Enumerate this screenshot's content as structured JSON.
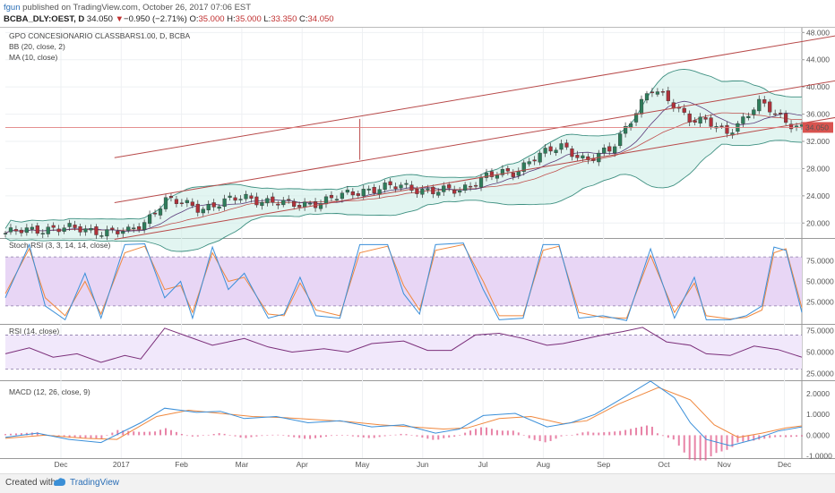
{
  "header": {
    "author": "fgun",
    "published_text": "published on TradingView.com, October 26, 2017 07:06 EST",
    "symbol": "BCBA_DLY:OEST, D",
    "price": "34.050",
    "change_arrow": "▼",
    "change": "−0.950 (−2.71%)",
    "o_label": "O:",
    "o_value": "35.000",
    "h_label": "H:",
    "h_value": "35.000",
    "l_label": "L:",
    "l_value": "33.350",
    "c_label": "C:",
    "c_value": "34.050"
  },
  "footer": {
    "created_with": "Created with",
    "brand": "TradingView"
  },
  "chart_data": {
    "type": "candlestick",
    "panes": {
      "price": {
        "legend": [
          "GPO CONCESIONARIO CLASSBARS1.00, D, BCBA",
          "BB (20, close, 2)",
          "MA (10, close)"
        ],
        "ticks": [
          "48.000",
          "44.000",
          "40.000",
          "36.000",
          "32.000",
          "28.000",
          "24.000",
          "20.000"
        ],
        "tick_values": [
          48,
          44,
          40,
          36,
          32,
          28,
          24,
          20
        ],
        "ylim": [
          17.8,
          48.7
        ],
        "last_price_label": "34.050",
        "last_price": 34.05,
        "close_path": [
          [
            0,
            18.5
          ],
          [
            0.06,
            19.3
          ],
          [
            0.11,
            18.9
          ],
          [
            0.155,
            18.6
          ],
          [
            0.175,
            20.2
          ],
          [
            0.2,
            23.4
          ],
          [
            0.245,
            22.2
          ],
          [
            0.3,
            23.8
          ],
          [
            0.36,
            22.6
          ],
          [
            0.4,
            23.2
          ],
          [
            0.45,
            24.9
          ],
          [
            0.5,
            25.4
          ],
          [
            0.54,
            24.6
          ],
          [
            0.57,
            24.8
          ],
          [
            0.6,
            26.8
          ],
          [
            0.64,
            27.4
          ],
          [
            0.66,
            29.6
          ],
          [
            0.7,
            31.2
          ],
          [
            0.73,
            29.3
          ],
          [
            0.76,
            30.6
          ],
          [
            0.775,
            33.4
          ],
          [
            0.795,
            37.2
          ],
          [
            0.81,
            39.6
          ],
          [
            0.835,
            37.8
          ],
          [
            0.86,
            35.4
          ],
          [
            0.88,
            34.8
          ],
          [
            0.905,
            33.2
          ],
          [
            0.93,
            35.8
          ],
          [
            0.945,
            37.6
          ],
          [
            0.965,
            36.2
          ],
          [
            0.98,
            35.0
          ],
          [
            1.0,
            34.05
          ]
        ],
        "trend_lines": [
          {
            "x1": 0.137,
            "y1": 29.6,
            "x2": 1.047,
            "y2": 47.6
          },
          {
            "x1": 0.137,
            "y1": 23.0,
            "x2": 1.047,
            "y2": 41.0
          },
          {
            "x1": 0.137,
            "y1": 17.6,
            "x2": 1.047,
            "y2": 35.6
          },
          {
            "x1": 0.445,
            "y1": 29.3,
            "x2": 0.445,
            "y2": 35.3
          }
        ]
      },
      "stoch_rsi": {
        "legend": "Stoch RSI (3, 3, 14, 14, close)",
        "ticks": [
          "75.0000",
          "50.0000",
          "25.0000"
        ],
        "tick_values": [
          75,
          50,
          25
        ],
        "ylim": [
          -2,
          102
        ],
        "bands": [
          80,
          20
        ],
        "k_path": [
          [
            0,
            30
          ],
          [
            0.03,
            95
          ],
          [
            0.05,
            20
          ],
          [
            0.075,
            3
          ],
          [
            0.1,
            60
          ],
          [
            0.12,
            5
          ],
          [
            0.15,
            95
          ],
          [
            0.175,
            96
          ],
          [
            0.2,
            30
          ],
          [
            0.22,
            50
          ],
          [
            0.235,
            5
          ],
          [
            0.26,
            92
          ],
          [
            0.28,
            40
          ],
          [
            0.3,
            60
          ],
          [
            0.33,
            5
          ],
          [
            0.35,
            10
          ],
          [
            0.37,
            55
          ],
          [
            0.39,
            8
          ],
          [
            0.42,
            5
          ],
          [
            0.445,
            95
          ],
          [
            0.48,
            95
          ],
          [
            0.5,
            35
          ],
          [
            0.52,
            10
          ],
          [
            0.54,
            95
          ],
          [
            0.575,
            97
          ],
          [
            0.6,
            40
          ],
          [
            0.62,
            3
          ],
          [
            0.65,
            5
          ],
          [
            0.675,
            95
          ],
          [
            0.695,
            95
          ],
          [
            0.72,
            5
          ],
          [
            0.75,
            8
          ],
          [
            0.78,
            2
          ],
          [
            0.81,
            90
          ],
          [
            0.84,
            5
          ],
          [
            0.865,
            55
          ],
          [
            0.88,
            3
          ],
          [
            0.91,
            3
          ],
          [
            0.93,
            8
          ],
          [
            0.95,
            20
          ],
          [
            0.965,
            92
          ],
          [
            0.98,
            88
          ],
          [
            1.0,
            12
          ]
        ],
        "d_path": [
          [
            0,
            35
          ],
          [
            0.03,
            90
          ],
          [
            0.05,
            30
          ],
          [
            0.075,
            8
          ],
          [
            0.1,
            50
          ],
          [
            0.12,
            10
          ],
          [
            0.15,
            85
          ],
          [
            0.175,
            93
          ],
          [
            0.2,
            40
          ],
          [
            0.22,
            45
          ],
          [
            0.235,
            12
          ],
          [
            0.26,
            85
          ],
          [
            0.28,
            50
          ],
          [
            0.3,
            55
          ],
          [
            0.33,
            10
          ],
          [
            0.35,
            8
          ],
          [
            0.37,
            48
          ],
          [
            0.39,
            15
          ],
          [
            0.42,
            8
          ],
          [
            0.445,
            85
          ],
          [
            0.48,
            93
          ],
          [
            0.5,
            45
          ],
          [
            0.52,
            15
          ],
          [
            0.54,
            88
          ],
          [
            0.575,
            95
          ],
          [
            0.6,
            50
          ],
          [
            0.62,
            8
          ],
          [
            0.65,
            8
          ],
          [
            0.675,
            88
          ],
          [
            0.695,
            93
          ],
          [
            0.72,
            12
          ],
          [
            0.75,
            6
          ],
          [
            0.78,
            5
          ],
          [
            0.81,
            82
          ],
          [
            0.84,
            12
          ],
          [
            0.865,
            48
          ],
          [
            0.88,
            8
          ],
          [
            0.91,
            4
          ],
          [
            0.93,
            6
          ],
          [
            0.95,
            15
          ],
          [
            0.965,
            85
          ],
          [
            0.98,
            90
          ],
          [
            1.0,
            18
          ]
        ]
      },
      "rsi": {
        "legend": "RSI (14, close)",
        "ticks": [
          "75.0000",
          "50.0000",
          "25.0000"
        ],
        "tick_values": [
          75,
          50,
          25
        ],
        "ylim": [
          17,
          82
        ],
        "bands": [
          70,
          30
        ],
        "path": [
          [
            0,
            48
          ],
          [
            0.03,
            55
          ],
          [
            0.06,
            44
          ],
          [
            0.09,
            48
          ],
          [
            0.12,
            38
          ],
          [
            0.15,
            46
          ],
          [
            0.17,
            42
          ],
          [
            0.2,
            78
          ],
          [
            0.23,
            68
          ],
          [
            0.26,
            58
          ],
          [
            0.3,
            66
          ],
          [
            0.33,
            56
          ],
          [
            0.36,
            50
          ],
          [
            0.4,
            54
          ],
          [
            0.43,
            50
          ],
          [
            0.46,
            60
          ],
          [
            0.5,
            63
          ],
          [
            0.53,
            52
          ],
          [
            0.56,
            52
          ],
          [
            0.59,
            70
          ],
          [
            0.62,
            72
          ],
          [
            0.65,
            66
          ],
          [
            0.68,
            58
          ],
          [
            0.7,
            60
          ],
          [
            0.72,
            64
          ],
          [
            0.75,
            70
          ],
          [
            0.775,
            74
          ],
          [
            0.8,
            79
          ],
          [
            0.83,
            62
          ],
          [
            0.86,
            58
          ],
          [
            0.88,
            48
          ],
          [
            0.91,
            46
          ],
          [
            0.94,
            57
          ],
          [
            0.97,
            53
          ],
          [
            1.0,
            44
          ]
        ]
      },
      "macd": {
        "legend": "MACD (12, 26, close, 9)",
        "ticks": [
          "2.0000",
          "1.0000",
          "0.0000",
          "-1.0000"
        ],
        "tick_values": [
          2,
          1,
          0,
          -1
        ],
        "ylim": [
          -1.1,
          2.6
        ],
        "macd_path": [
          [
            0,
            -0.1
          ],
          [
            0.04,
            0.1
          ],
          [
            0.08,
            -0.2
          ],
          [
            0.12,
            -0.35
          ],
          [
            0.17,
            0.6
          ],
          [
            0.2,
            1.3
          ],
          [
            0.24,
            1.1
          ],
          [
            0.27,
            1.15
          ],
          [
            0.3,
            0.8
          ],
          [
            0.34,
            0.9
          ],
          [
            0.38,
            0.6
          ],
          [
            0.42,
            0.7
          ],
          [
            0.46,
            0.4
          ],
          [
            0.5,
            0.5
          ],
          [
            0.54,
            0.1
          ],
          [
            0.57,
            0.3
          ],
          [
            0.6,
            0.95
          ],
          [
            0.64,
            1.05
          ],
          [
            0.68,
            0.4
          ],
          [
            0.71,
            0.6
          ],
          [
            0.74,
            1.0
          ],
          [
            0.78,
            1.9
          ],
          [
            0.81,
            2.6
          ],
          [
            0.84,
            1.8
          ],
          [
            0.86,
            0.6
          ],
          [
            0.88,
            -0.2
          ],
          [
            0.91,
            -0.5
          ],
          [
            0.94,
            -0.2
          ],
          [
            0.97,
            0.2
          ],
          [
            1.0,
            0.4
          ]
        ],
        "signal_path": [
          [
            0,
            -0.15
          ],
          [
            0.05,
            0.0
          ],
          [
            0.1,
            -0.15
          ],
          [
            0.14,
            -0.2
          ],
          [
            0.19,
            0.9
          ],
          [
            0.23,
            1.2
          ],
          [
            0.27,
            1.05
          ],
          [
            0.31,
            0.9
          ],
          [
            0.35,
            0.85
          ],
          [
            0.39,
            0.75
          ],
          [
            0.43,
            0.65
          ],
          [
            0.47,
            0.5
          ],
          [
            0.51,
            0.4
          ],
          [
            0.55,
            0.3
          ],
          [
            0.58,
            0.35
          ],
          [
            0.62,
            0.8
          ],
          [
            0.66,
            0.9
          ],
          [
            0.7,
            0.55
          ],
          [
            0.73,
            0.7
          ],
          [
            0.77,
            1.5
          ],
          [
            0.82,
            2.3
          ],
          [
            0.86,
            1.7
          ],
          [
            0.89,
            0.5
          ],
          [
            0.92,
            -0.1
          ],
          [
            0.95,
            0.1
          ],
          [
            0.98,
            0.35
          ],
          [
            1.0,
            0.45
          ]
        ]
      }
    },
    "x_axis": {
      "ticks": [
        "Dec",
        "2017",
        "Feb",
        "Mar",
        "Apr",
        "May",
        "Jun",
        "Jul",
        "Aug",
        "Sep",
        "Oct",
        "Nov",
        "Dec"
      ]
    }
  }
}
